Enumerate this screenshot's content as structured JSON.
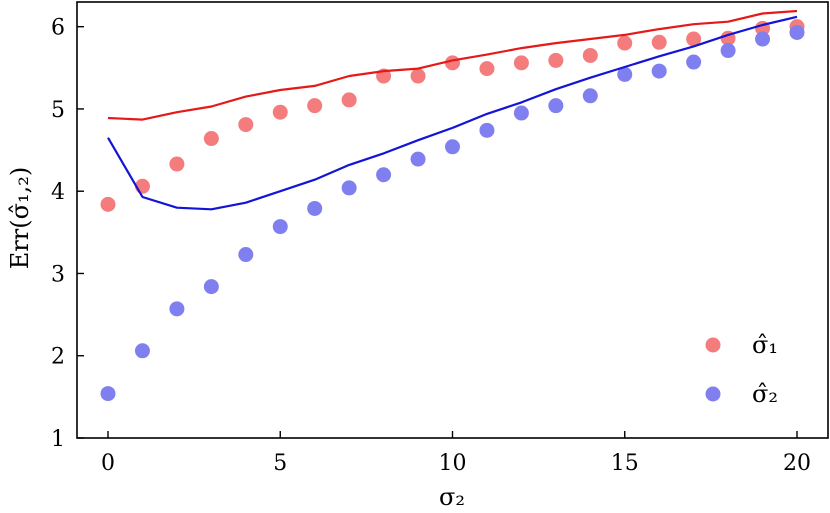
{
  "chart_data": {
    "type": "scatter",
    "xlabel": "σ₂",
    "ylabel": "Err(σ̂₁,₂)",
    "xlim": [
      -0.9,
      20.9
    ],
    "ylim": [
      1,
      6.3
    ],
    "xticks": [
      0,
      5,
      10,
      15,
      20
    ],
    "yticks": [
      1,
      2,
      3,
      4,
      5,
      6
    ],
    "grid": false,
    "legend_position": "bottom-right",
    "series": [
      {
        "name": "σ̂₁",
        "kind": "scatter",
        "color": "#f47c7c",
        "x": [
          0,
          1,
          2,
          3,
          4,
          5,
          6,
          7,
          8,
          9,
          10,
          11,
          12,
          13,
          14,
          15,
          16,
          17,
          18,
          19,
          20
        ],
        "y": [
          3.84,
          4.06,
          4.33,
          4.64,
          4.81,
          4.96,
          5.04,
          5.11,
          5.4,
          5.4,
          5.56,
          5.49,
          5.56,
          5.59,
          5.65,
          5.8,
          5.81,
          5.85,
          5.86,
          5.98,
          6.0
        ]
      },
      {
        "name": "σ̂₂",
        "kind": "scatter",
        "color": "#7f7ff0",
        "x": [
          0,
          1,
          2,
          3,
          4,
          5,
          6,
          7,
          8,
          9,
          10,
          11,
          12,
          13,
          14,
          15,
          16,
          17,
          18,
          19,
          20
        ],
        "y": [
          1.54,
          2.06,
          2.57,
          2.84,
          3.23,
          3.57,
          3.79,
          4.04,
          4.2,
          4.39,
          4.54,
          4.74,
          4.95,
          5.04,
          5.16,
          5.42,
          5.46,
          5.57,
          5.71,
          5.85,
          5.93
        ]
      },
      {
        "kind": "line",
        "color": "#e61919",
        "x": [
          0,
          1,
          2,
          3,
          4,
          5,
          6,
          7,
          8,
          9,
          10,
          11,
          12,
          13,
          14,
          15,
          16,
          17,
          18,
          19,
          20
        ],
        "y": [
          4.89,
          4.87,
          4.96,
          5.03,
          5.15,
          5.23,
          5.28,
          5.4,
          5.46,
          5.49,
          5.59,
          5.66,
          5.74,
          5.8,
          5.85,
          5.9,
          5.97,
          6.03,
          6.06,
          6.16,
          6.19
        ]
      },
      {
        "kind": "line",
        "color": "#1414d6",
        "x": [
          0,
          1,
          2,
          3,
          4,
          5,
          6,
          7,
          8,
          9,
          10,
          11,
          12,
          13,
          14,
          15,
          16,
          17,
          18,
          19,
          20
        ],
        "y": [
          4.65,
          3.93,
          3.8,
          3.78,
          3.86,
          4.0,
          4.14,
          4.32,
          4.46,
          4.62,
          4.77,
          4.94,
          5.08,
          5.24,
          5.38,
          5.51,
          5.64,
          5.76,
          5.9,
          6.02,
          6.12
        ]
      }
    ]
  }
}
